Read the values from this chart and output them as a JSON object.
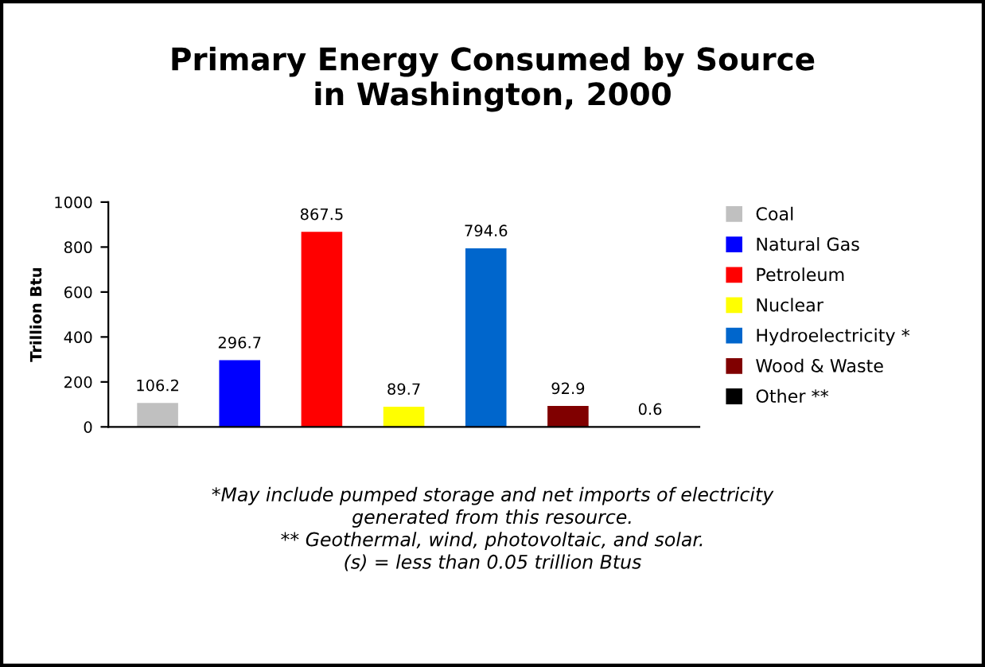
{
  "chart_data": {
    "type": "bar",
    "title": "Primary Energy Consumed by Source\nin Washington, 2000",
    "ylabel": "Trillion Btu",
    "categories": [
      null,
      null,
      null,
      null,
      null,
      null,
      null
    ],
    "series": [
      {
        "name": "Coal",
        "color": "#c0c0c0",
        "values": [
          106.2,
          null,
          null,
          null,
          null,
          null,
          null
        ]
      },
      {
        "name": "Natural Gas",
        "color": "#0000ff",
        "values": [
          null,
          296.7,
          null,
          null,
          null,
          null,
          null
        ]
      },
      {
        "name": "Petroleum",
        "color": "#ff0000",
        "values": [
          null,
          null,
          867.5,
          null,
          null,
          null,
          null
        ]
      },
      {
        "name": "Nuclear",
        "color": "#ffff00",
        "values": [
          null,
          null,
          null,
          89.7,
          null,
          null,
          null
        ]
      },
      {
        "name": "Hydroelectricity *",
        "color": "#0066cc",
        "values": [
          null,
          null,
          null,
          null,
          794.6,
          null,
          null
        ]
      },
      {
        "name": "Wood & Waste",
        "color": "#800000",
        "values": [
          null,
          null,
          null,
          null,
          null,
          92.9,
          null
        ]
      },
      {
        "name": "Other **",
        "color": "#000000",
        "values": [
          null,
          null,
          null,
          null,
          null,
          null,
          0.6
        ]
      }
    ],
    "ylim": [
      0,
      1000
    ],
    "yticks": [
      0,
      200,
      400,
      600,
      800,
      1000
    ],
    "grid": false,
    "legend": "right",
    "data_labels": true,
    "annotations": [
      "*May include pumped storage and net imports of electricity\ngenerated from this resource.\n** Geothermal, wind, photovoltaic, and solar.\n(s) = less than 0.05 trillion Btus"
    ]
  }
}
